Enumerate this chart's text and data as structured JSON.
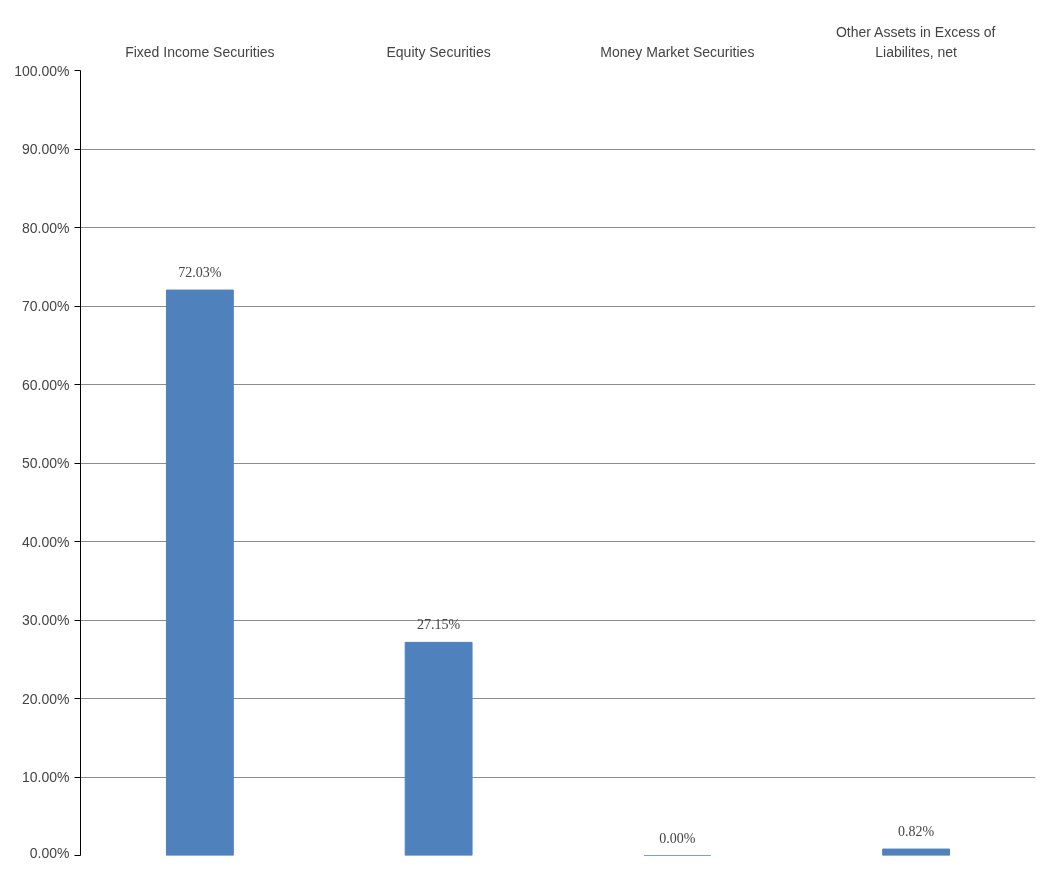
{
  "chart_data": {
    "type": "bar",
    "categories": [
      "Fixed Income Securities",
      "Equity Securities",
      "Money Market Securities",
      "Other Assets in Excess of Liabilites, net"
    ],
    "values": [
      72.03,
      27.15,
      0.0,
      0.82
    ],
    "value_labels": [
      "72.03%",
      "27.15%",
      "0.00%",
      "0.82%"
    ],
    "color": "#4f81bd",
    "ylim": [
      0,
      100
    ],
    "yticks": [
      {
        "value": 0,
        "label": "0.00%"
      },
      {
        "value": 10,
        "label": "10.00%"
      },
      {
        "value": 20,
        "label": "20.00%"
      },
      {
        "value": 30,
        "label": "30.00%"
      },
      {
        "value": 40,
        "label": "40.00%"
      },
      {
        "value": 50,
        "label": "50.00%"
      },
      {
        "value": 60,
        "label": "60.00%"
      },
      {
        "value": 70,
        "label": "70.00%"
      },
      {
        "value": 80,
        "label": "80.00%"
      },
      {
        "value": 90,
        "label": "90.00%"
      },
      {
        "value": 100,
        "label": "100.00%"
      }
    ],
    "grid": "y"
  }
}
